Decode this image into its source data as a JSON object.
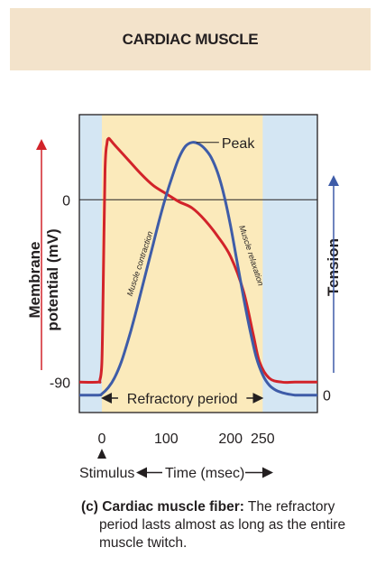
{
  "header": {
    "title": "CARDIAC MUSCLE"
  },
  "chart_data": {
    "type": "line",
    "x_ticks": [
      {
        "value": 0,
        "label": "0"
      },
      {
        "value": 100,
        "label": "100"
      },
      {
        "value": 200,
        "label": "200"
      },
      {
        "value": 250,
        "label": "250"
      }
    ],
    "xlim": [
      -35,
      335
    ],
    "xlabel_left": "Stimulus",
    "xlabel_center": "Time (msec)",
    "stimulus_time": 0,
    "left_axis": {
      "label_line1": "Membrane",
      "label_line2": "potential (mV)",
      "ticks": [
        {
          "value": 0,
          "label": "0"
        },
        {
          "value": -90,
          "label": "-90"
        }
      ],
      "ylim": [
        -105,
        42
      ],
      "color": "#d2232a"
    },
    "right_axis": {
      "label": "Tension",
      "ticks": [
        {
          "value": 0,
          "label": "0"
        }
      ],
      "ylim": [
        -0.069,
        1.11
      ],
      "color": "#3e5ca8"
    },
    "refractory_period": {
      "start": 0,
      "end": 250,
      "label": "Refractory period"
    },
    "series": [
      {
        "axis": "left",
        "color": "#d2232a",
        "x": [
          -35,
          -6,
          -3,
          0,
          2,
          5,
          8,
          10,
          12,
          20,
          40,
          60,
          80,
          100,
          120,
          140,
          160,
          180,
          200,
          220,
          235,
          245,
          260,
          280,
          300,
          335
        ],
        "y": [
          -90,
          -90,
          -89,
          -80,
          -45,
          15,
          28,
          30,
          30,
          27,
          20,
          13,
          7,
          3,
          -1,
          -4,
          -10,
          -18,
          -28,
          -45,
          -66,
          -80,
          -88,
          -90,
          -90,
          -90
        ]
      },
      {
        "axis": "right",
        "color": "#3e5ca8",
        "x": [
          -35,
          -5,
          0,
          10,
          20,
          30,
          40,
          50,
          60,
          70,
          80,
          90,
          100,
          110,
          120,
          130,
          140,
          150,
          160,
          170,
          180,
          190,
          200,
          210,
          220,
          230,
          240,
          250,
          260,
          270,
          280,
          290,
          300,
          310,
          335
        ],
        "y": [
          0,
          0,
          0.005,
          0.03,
          0.07,
          0.13,
          0.21,
          0.3,
          0.4,
          0.5,
          0.6,
          0.7,
          0.79,
          0.87,
          0.94,
          0.985,
          1.0,
          0.995,
          0.975,
          0.94,
          0.88,
          0.79,
          0.67,
          0.53,
          0.39,
          0.26,
          0.15,
          0.08,
          0.04,
          0.02,
          0.01,
          0.004,
          0,
          0,
          0
        ]
      }
    ],
    "annotations": [
      {
        "text": "Peak",
        "x": 140,
        "y": 1.0,
        "axis": "right"
      },
      {
        "text": "Muscle contraction"
      },
      {
        "text": "Muscle relaxation"
      }
    ]
  },
  "caption": {
    "label": "(c) Cardiac muscle fiber:",
    "line1_rest": " The refractory",
    "line2": "period lasts almost as long as the entire",
    "line3": "muscle twitch."
  }
}
